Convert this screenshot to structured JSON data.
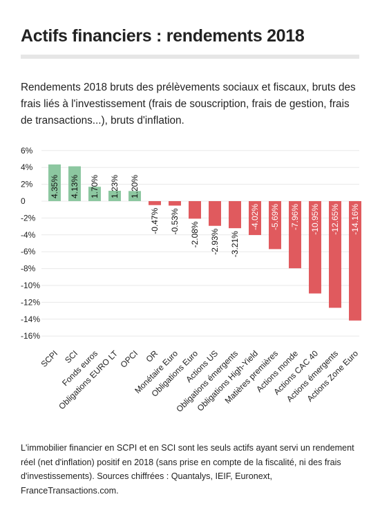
{
  "header": {
    "title": "Actifs financiers : rendements 2018",
    "subtitle": "Rendements 2018 bruts des prélèvements sociaux et fiscaux, bruts des frais liés à l'investissement (frais de souscription, frais de gestion, frais de transactions...), bruts d'inflation."
  },
  "footer": {
    "note": "L'immobilier financier en SCPI et en SCI sont les seuls actifs ayant servi un rendement réel (net d'inflation) positif en 2018 (sans prise en compte de la fiscalité, ni des frais d'investissements). Sources chiffrées : Quantalys, IEIF, Euronext, FranceTransactions.com."
  },
  "colors": {
    "positive": "#8cc7a0",
    "negative": "#e05a5e",
    "grid": "#e8e8e8",
    "positive_label": "#111111",
    "negative_label_inside": "#ffffff",
    "negative_label_outside": "#111111"
  },
  "chart_data": {
    "type": "bar",
    "title": "",
    "xlabel": "",
    "ylabel": "",
    "ylim": [
      -17,
      6.5
    ],
    "y_ticks": [
      "6%",
      "4%",
      "2%",
      "0",
      "-2%",
      "-4%",
      "-6%",
      "-8%",
      "-10%",
      "-12%",
      "-14%",
      "-16%"
    ],
    "y_tick_values": [
      6,
      4,
      2,
      0,
      -2,
      -4,
      -6,
      -8,
      -10,
      -12,
      -14,
      -16
    ],
    "grid": true,
    "categories": [
      "SCPI",
      "SCI",
      "Fonds euros",
      "Obligations EURO LT",
      "OPCI",
      "OR",
      "Monétaire Euro",
      "Obligations Euro",
      "Actions US",
      "Obligations émergents",
      "Obligations High-Yield",
      "Matières premières",
      "Actions monde",
      "Actions CAC 40",
      "Actions émergents",
      "Actions Zone Euro"
    ],
    "values": [
      4.35,
      4.13,
      1.7,
      1.23,
      1.2,
      -0.47,
      -0.53,
      -2.08,
      -2.93,
      -3.21,
      -4.02,
      -5.69,
      -7.96,
      -10.95,
      -12.65,
      -14.16
    ],
    "labels": [
      "4.35%",
      "4.13%",
      "1.70%",
      "1.23%",
      "1.20%",
      "-0.47%",
      "-0.53%",
      "-2.08%",
      "-2.93%",
      "-3.21%",
      "-4.02%",
      "-5.69%",
      "-7.96%",
      "-10.95%",
      "-12.65%",
      "-14.16%"
    ]
  }
}
